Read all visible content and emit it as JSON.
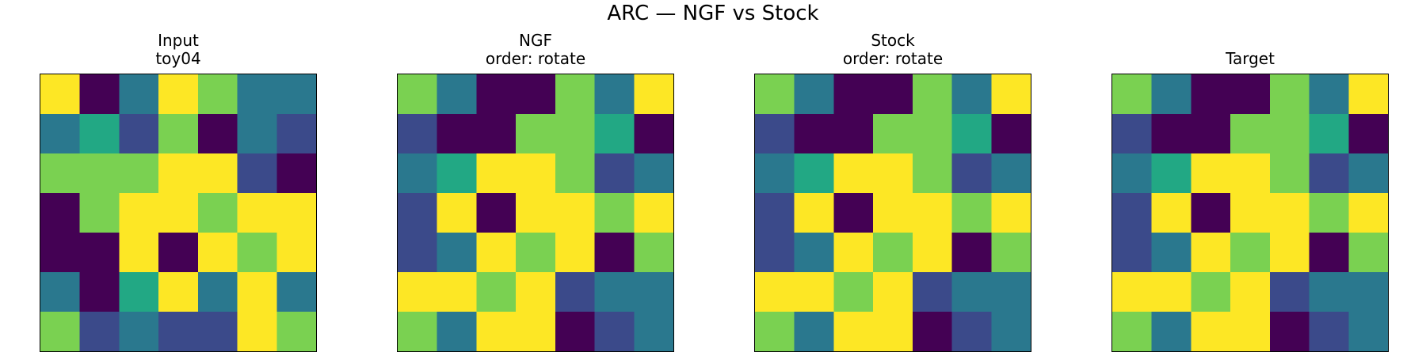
{
  "chart_data": {
    "type": "heatmap",
    "suptitle": "ARC — NGF vs Stock",
    "palette": {
      "0": "#440154",
      "1": "#3b4a8a",
      "2": "#2a788e",
      "3": "#22a884",
      "4": "#7ad151",
      "5": "#fde725"
    },
    "panels": [
      {
        "title_lines": [
          "Input",
          "toy04"
        ],
        "grid": [
          [
            5,
            0,
            2,
            5,
            4,
            2,
            2
          ],
          [
            2,
            3,
            1,
            4,
            0,
            2,
            1
          ],
          [
            4,
            4,
            4,
            5,
            5,
            1,
            0
          ],
          [
            0,
            4,
            5,
            5,
            4,
            5,
            5
          ],
          [
            0,
            0,
            5,
            0,
            5,
            4,
            5
          ],
          [
            2,
            0,
            3,
            5,
            2,
            5,
            2
          ],
          [
            4,
            1,
            2,
            1,
            1,
            5,
            4
          ]
        ]
      },
      {
        "title_lines": [
          "NGF",
          "order: rotate"
        ],
        "grid": [
          [
            4,
            2,
            0,
            0,
            4,
            2,
            5
          ],
          [
            1,
            0,
            0,
            4,
            4,
            3,
            0
          ],
          [
            2,
            3,
            5,
            5,
            4,
            1,
            2
          ],
          [
            1,
            5,
            0,
            5,
            5,
            4,
            5
          ],
          [
            1,
            2,
            5,
            4,
            5,
            0,
            4
          ],
          [
            5,
            5,
            4,
            5,
            1,
            2,
            2
          ],
          [
            4,
            2,
            5,
            5,
            0,
            1,
            2
          ]
        ]
      },
      {
        "title_lines": [
          "Stock",
          "order: rotate"
        ],
        "grid": [
          [
            4,
            2,
            0,
            0,
            4,
            2,
            5
          ],
          [
            1,
            0,
            0,
            4,
            4,
            3,
            0
          ],
          [
            2,
            3,
            5,
            5,
            4,
            1,
            2
          ],
          [
            1,
            5,
            0,
            5,
            5,
            4,
            5
          ],
          [
            1,
            2,
            5,
            4,
            5,
            0,
            4
          ],
          [
            5,
            5,
            4,
            5,
            1,
            2,
            2
          ],
          [
            4,
            2,
            5,
            5,
            0,
            1,
            2
          ]
        ]
      },
      {
        "title_lines": [
          "Target"
        ],
        "grid": [
          [
            4,
            2,
            0,
            0,
            4,
            2,
            5
          ],
          [
            1,
            0,
            0,
            4,
            4,
            3,
            0
          ],
          [
            2,
            3,
            5,
            5,
            4,
            1,
            2
          ],
          [
            1,
            5,
            0,
            5,
            5,
            4,
            5
          ],
          [
            1,
            2,
            5,
            4,
            5,
            0,
            4
          ],
          [
            5,
            5,
            4,
            5,
            1,
            2,
            2
          ],
          [
            4,
            2,
            5,
            5,
            0,
            1,
            2
          ]
        ]
      }
    ]
  }
}
